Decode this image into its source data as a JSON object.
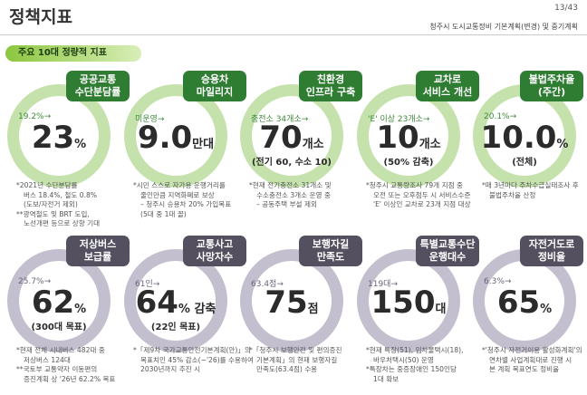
{
  "header": {
    "title": "정책지표",
    "page": "13/43",
    "subtitle": "청주시 도시교통정비 기본계획(변경) 및 중기계획"
  },
  "section": "주요 10대 정량적 지표",
  "rows": [
    [
      {
        "title": [
          "공공교통",
          "수단분담률"
        ],
        "current": "19.2%→",
        "target": "23",
        "unit": "%",
        "notes": [
          "*2021년 수단분담률",
          "버스 18.4%, 철도 0.8%",
          "(도보/자전거 제외)",
          "**광역철도 및 BRT 도입,",
          "노선개편 등으로 상향 기대"
        ]
      },
      {
        "title": [
          "승용차",
          "마일리지"
        ],
        "current": "미운영→",
        "target": "9.0",
        "unit": "만대",
        "notes": [
          "*시민 스스로 자가용 운행거리를",
          "줄인만큼 지역화폐로 보상",
          "– 청주시 승용차 20% 가입목표",
          "(5대 중 1대 꼴)"
        ]
      },
      {
        "title": [
          "친환경",
          "인프라 구축"
        ],
        "current": "충전소 34개소→",
        "target": "70",
        "unit": "개소",
        "sub": "(전기 60, 수소 10)",
        "notes": [
          "*현재 전기충전소 31개소 및",
          "수소충전소 3개소 운영 중",
          "– 공동주택 부설 제외"
        ]
      },
      {
        "title": [
          "교차로",
          "서비스 개선"
        ],
        "current": "'E' 이상 23개소→",
        "target": "10",
        "unit": "개소",
        "sub": "(50% 감축)",
        "notes": [
          "*청주시 교통량조사 79개 지점 중",
          "오전 또는 오후첨두 시 서비스수준",
          "'E' 이상인 교차로 23개 지점 대상"
        ]
      },
      {
        "title": [
          "불법주차율",
          "(주간)"
        ],
        "current": "20.1%→",
        "target": "10.0",
        "unit": "%",
        "sub": "(전체)",
        "notes": [
          "*매 3년마다 주차수급실태조사 후",
          "불법주차율 산정"
        ]
      }
    ],
    [
      {
        "title": [
          "저상버스",
          "보급률"
        ],
        "current": "25.7%→",
        "target": "62",
        "unit": "%",
        "sub": "(300대 목표)",
        "notes": [
          "*현재 전체 시내버스 482대 중",
          "저상버스 124대",
          "**국토부 교통약자 이동편의",
          "증진계획 상 '26년 62.2% 목표"
        ]
      },
      {
        "title": [
          "교통사고",
          "사망자수"
        ],
        "current": "61인→",
        "target": "64",
        "unit": "% 감축",
        "sub": "(22인 목표)",
        "notes": [
          "*「제9차 국가교통안전기본계획(안)」의",
          "목표치인 45% 감소(~'26)를 수용하여",
          "2030년까지 추진 시"
        ]
      },
      {
        "title": [
          "보행자길",
          "만족도"
        ],
        "current": "63.4점→",
        "target": "75",
        "unit": "점",
        "notes": [
          "*「청주시 보행안전 및 편의증진",
          "기본계획」의 현재 보행자길",
          "만족도(63.4점) 수용"
        ]
      },
      {
        "title": [
          "특별교통수단",
          "운행대수"
        ],
        "current": "119대→",
        "target": "150",
        "unit": "대",
        "notes": [
          "*현재 특장(51), 임차물택시(18),",
          "바우처택시(50) 운영",
          "*특장차는 중증장애인 150인당",
          "1대 확보"
        ]
      },
      {
        "title": [
          "자전거도로",
          "정비율"
        ],
        "current": "6.3%→",
        "target": "65",
        "unit": "%",
        "notes": [
          "*'청주시 자전거이용 활성화계획'의",
          "연차별 사업계획대로 진행 시",
          "본 계획 목표연도 정비율"
        ]
      }
    ]
  ]
}
